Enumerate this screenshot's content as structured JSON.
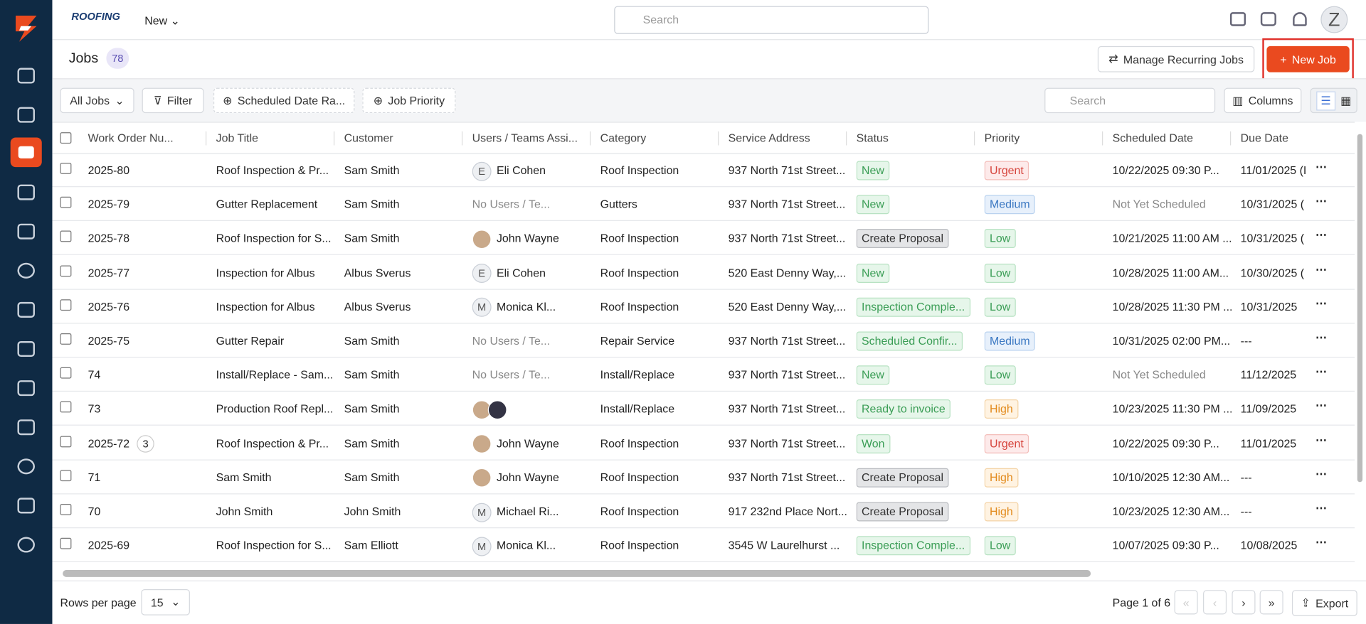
{
  "header": {
    "brand": "ROOFING",
    "new_menu": "New",
    "search_placeholder": "Search",
    "avatar": "Z"
  },
  "page": {
    "title": "Jobs",
    "count": 78,
    "manage_button": "Manage Recurring Jobs",
    "new_button": "New Job"
  },
  "toolbar": {
    "all_jobs": "All Jobs",
    "filter": "Filter",
    "date_range": "Scheduled Date Ra...",
    "priority": "Job Priority",
    "search_placeholder": "Search",
    "columns": "Columns"
  },
  "table": {
    "columns": [
      "Work Order Nu...",
      "Job Title",
      "Customer",
      "Users / Teams Assi...",
      "Category",
      "Service Address",
      "Status",
      "Priority",
      "Scheduled Date",
      "Due Date"
    ],
    "rows": [
      {
        "id": "2025-80",
        "title": "Roof Inspection & Pr...",
        "customer": "Sam Smith",
        "user": {
          "avatar": "E",
          "name": "Eli Cohen"
        },
        "category": "Roof Inspection",
        "address": "937 North 71st Street...",
        "status": "New",
        "status_color": "green",
        "priority": "Urgent",
        "priority_color": "red",
        "scheduled": "10/22/2025 09:30 P...",
        "due": "11/01/2025 (I"
      },
      {
        "id": "2025-79",
        "title": "Gutter Replacement",
        "customer": "Sam Smith",
        "user": {
          "name": "No Users / Te...",
          "muted": true
        },
        "category": "Gutters",
        "address": "937 North 71st Street...",
        "status": "New",
        "status_color": "green",
        "priority": "Medium",
        "priority_color": "blue",
        "scheduled": "Not Yet Scheduled",
        "scheduled_muted": true,
        "due": "10/31/2025 ("
      },
      {
        "id": "2025-78",
        "title": "Roof Inspection for S...",
        "customer": "Sam Smith",
        "user": {
          "photos": 1,
          "name": "John Wayne"
        },
        "category": "Roof Inspection",
        "address": "937 North 71st Street...",
        "status": "Create Proposal",
        "status_color": "grey",
        "priority": "Low",
        "priority_color": "green",
        "scheduled": "10/21/2025 11:00 AM ...",
        "due": "10/31/2025 ("
      },
      {
        "id": "2025-77",
        "title": "Inspection for Albus",
        "customer": "Albus Sverus",
        "user": {
          "avatar": "E",
          "name": "Eli Cohen"
        },
        "category": "Roof Inspection",
        "address": "520 East Denny Way,...",
        "status": "New",
        "status_color": "green",
        "priority": "Low",
        "priority_color": "green",
        "scheduled": "10/28/2025 11:00 AM...",
        "due": "10/30/2025 ("
      },
      {
        "id": "2025-76",
        "title": "Inspection for Albus",
        "customer": "Albus Sverus",
        "user": {
          "avatar": "M",
          "name": "Monica Kl..."
        },
        "category": "Roof Inspection",
        "address": "520 East Denny Way,...",
        "status": "Inspection Comple...",
        "status_color": "green",
        "priority": "Low",
        "priority_color": "green",
        "scheduled": "10/28/2025 11:30 PM ...",
        "due": "10/31/2025"
      },
      {
        "id": "2025-75",
        "title": "Gutter Repair",
        "customer": "Sam Smith",
        "user": {
          "name": "No Users / Te...",
          "muted": true
        },
        "category": "Repair Service",
        "address": "937 North 71st Street...",
        "status": "Scheduled Confir...",
        "status_color": "green",
        "priority": "Medium",
        "priority_color": "blue",
        "scheduled": "10/31/2025 02:00 PM...",
        "due": "---"
      },
      {
        "id": "74",
        "title": "Install/Replace - Sam...",
        "customer": "Sam Smith",
        "user": {
          "name": "No Users / Te...",
          "muted": true
        },
        "category": "Install/Replace",
        "address": "937 North 71st Street...",
        "status": "New",
        "status_color": "green",
        "priority": "Low",
        "priority_color": "green",
        "scheduled": "Not Yet Scheduled",
        "scheduled_muted": true,
        "due": "11/12/2025"
      },
      {
        "id": "73",
        "title": "Production Roof Repl...",
        "customer": "Sam Smith",
        "user": {
          "photos": 2
        },
        "category": "Install/Replace",
        "address": "937 North 71st Street...",
        "status": "Ready to invoice",
        "status_color": "green",
        "priority": "High",
        "priority_color": "orange",
        "scheduled": "10/23/2025 11:30 PM ...",
        "due": "11/09/2025"
      },
      {
        "id": "2025-72",
        "comments": 3,
        "title": "Roof Inspection & Pr...",
        "customer": "Sam Smith",
        "user": {
          "photos": 1,
          "name": "John Wayne"
        },
        "category": "Roof Inspection",
        "address": "937 North 71st Street...",
        "status": "Won",
        "status_color": "green",
        "priority": "Urgent",
        "priority_color": "red",
        "scheduled": "10/22/2025 09:30 P...",
        "due": "11/01/2025"
      },
      {
        "id": "71",
        "title": "Sam Smith",
        "customer": "Sam Smith",
        "user": {
          "photos": 1,
          "name": "John Wayne"
        },
        "category": "Roof Inspection",
        "address": "937 North 71st Street...",
        "status": "Create Proposal",
        "status_color": "grey",
        "priority": "High",
        "priority_color": "orange",
        "scheduled": "10/10/2025 12:30 AM...",
        "due": "---"
      },
      {
        "id": "70",
        "title": "John Smith",
        "customer": "John Smith",
        "user": {
          "avatar": "M",
          "name": "Michael Ri..."
        },
        "category": "Roof Inspection",
        "address": "917 232nd Place Nort...",
        "status": "Create Proposal",
        "status_color": "grey",
        "priority": "High",
        "priority_color": "orange",
        "scheduled": "10/23/2025 12:30 AM...",
        "due": "---"
      },
      {
        "id": "2025-69",
        "title": "Roof Inspection for S...",
        "customer": "Sam Elliott",
        "user": {
          "avatar": "M",
          "name": "Monica Kl..."
        },
        "category": "Roof Inspection",
        "address": "3545 W Laurelhurst ...",
        "status": "Inspection Comple...",
        "status_color": "green",
        "priority": "Low",
        "priority_color": "green",
        "scheduled": "10/07/2025 09:30 P...",
        "due": "10/08/2025"
      }
    ]
  },
  "footer": {
    "rows_per_page_label": "Rows per page",
    "rows_per_page": 15,
    "page_info": "Page 1 of 6",
    "export": "Export"
  }
}
